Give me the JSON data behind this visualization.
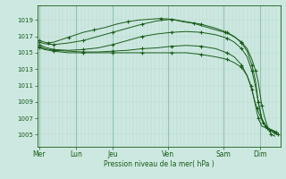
{
  "background_color": "#cce8e0",
  "plot_bg_color": "#cce8e0",
  "grid_minor_color": "#b8d8d0",
  "grid_major_color": "#90c0b0",
  "line_color": "#1a5c1a",
  "xlabel": "Pression niveau de la mer( hPa )",
  "ylim": [
    1003.5,
    1020.8
  ],
  "yticks": [
    1005,
    1007,
    1009,
    1011,
    1013,
    1015,
    1017,
    1019
  ],
  "day_labels": [
    "Mer",
    "Lun",
    "Jeu",
    "Ven",
    "Sam",
    "Dim"
  ],
  "day_positions": [
    0.0,
    1.0,
    2.0,
    3.5,
    5.0,
    6.0
  ],
  "xlim": [
    -0.05,
    6.55
  ],
  "curves": [
    {
      "x": [
        0.02,
        0.08,
        0.15,
        0.25,
        0.4,
        0.6,
        0.8,
        1.0,
        1.2,
        1.5,
        1.8,
        2.1,
        2.4,
        2.7,
        3.0,
        3.3,
        3.6,
        3.9,
        4.2,
        4.5,
        4.8,
        5.05,
        5.2,
        5.35,
        5.5,
        5.65,
        5.78,
        5.88,
        5.95,
        6.0,
        6.05,
        6.12,
        6.2,
        6.3,
        6.4
      ],
      "y": [
        1016.5,
        1016.4,
        1016.3,
        1016.2,
        1016.3,
        1016.6,
        1016.9,
        1017.2,
        1017.5,
        1017.8,
        1018.1,
        1018.5,
        1018.8,
        1019.0,
        1019.1,
        1019.2,
        1019.1,
        1018.8,
        1018.6,
        1018.2,
        1017.8,
        1017.5,
        1017.2,
        1016.8,
        1016.3,
        1015.5,
        1014.2,
        1012.8,
        1011.5,
        1010.0,
        1008.5,
        1007.2,
        1006.0,
        1005.0,
        1004.8
      ]
    },
    {
      "x": [
        0.02,
        0.15,
        0.4,
        0.8,
        1.2,
        1.6,
        2.0,
        2.4,
        2.8,
        3.2,
        3.6,
        4.0,
        4.4,
        4.8,
        5.1,
        5.3,
        5.5,
        5.65,
        5.78,
        5.88,
        5.95,
        6.05,
        6.15,
        6.3,
        6.4
      ],
      "y": [
        1016.3,
        1016.1,
        1016.0,
        1016.2,
        1016.5,
        1017.0,
        1017.5,
        1018.0,
        1018.5,
        1018.9,
        1019.1,
        1018.8,
        1018.5,
        1018.0,
        1017.5,
        1017.0,
        1016.2,
        1015.2,
        1013.5,
        1011.5,
        1009.0,
        1007.0,
        1006.0,
        1005.5,
        1005.3
      ]
    },
    {
      "x": [
        0.02,
        0.15,
        0.4,
        0.8,
        1.2,
        1.6,
        2.0,
        2.4,
        2.8,
        3.2,
        3.6,
        4.0,
        4.4,
        4.8,
        5.1,
        5.3,
        5.5,
        5.65,
        5.78,
        5.88,
        5.95,
        6.05,
        6.2,
        6.35,
        6.45
      ],
      "y": [
        1016.0,
        1015.7,
        1015.4,
        1015.3,
        1015.4,
        1015.6,
        1016.0,
        1016.5,
        1017.0,
        1017.3,
        1017.5,
        1017.6,
        1017.5,
        1017.2,
        1016.8,
        1016.3,
        1015.5,
        1014.5,
        1012.8,
        1010.8,
        1009.0,
        1006.8,
        1005.8,
        1005.5,
        1005.3
      ]
    },
    {
      "x": [
        0.02,
        0.15,
        0.4,
        0.8,
        1.2,
        1.6,
        2.0,
        2.4,
        2.8,
        3.2,
        3.6,
        4.0,
        4.4,
        4.8,
        5.1,
        5.3,
        5.5,
        5.65,
        5.78,
        5.88,
        5.95,
        6.05,
        6.2,
        6.35,
        6.45
      ],
      "y": [
        1015.8,
        1015.5,
        1015.3,
        1015.2,
        1015.1,
        1015.1,
        1015.2,
        1015.3,
        1015.5,
        1015.6,
        1015.8,
        1015.9,
        1015.8,
        1015.5,
        1015.0,
        1014.5,
        1013.5,
        1012.2,
        1010.5,
        1008.5,
        1007.0,
        1006.0,
        1005.8,
        1005.5,
        1005.2
      ]
    },
    {
      "x": [
        0.02,
        0.15,
        0.4,
        0.8,
        1.2,
        1.6,
        2.0,
        2.4,
        2.8,
        3.2,
        3.6,
        4.0,
        4.4,
        4.8,
        5.1,
        5.3,
        5.5,
        5.65,
        5.75,
        5.85,
        5.92,
        5.98,
        6.08,
        6.18,
        6.28,
        6.38,
        6.48
      ],
      "y": [
        1015.6,
        1015.4,
        1015.2,
        1015.0,
        1015.0,
        1015.0,
        1015.0,
        1015.0,
        1015.0,
        1015.0,
        1015.0,
        1015.0,
        1014.8,
        1014.5,
        1014.2,
        1013.8,
        1013.2,
        1012.2,
        1011.0,
        1009.2,
        1008.2,
        1007.5,
        1006.5,
        1005.8,
        1005.5,
        1005.2,
        1005.0
      ]
    }
  ]
}
